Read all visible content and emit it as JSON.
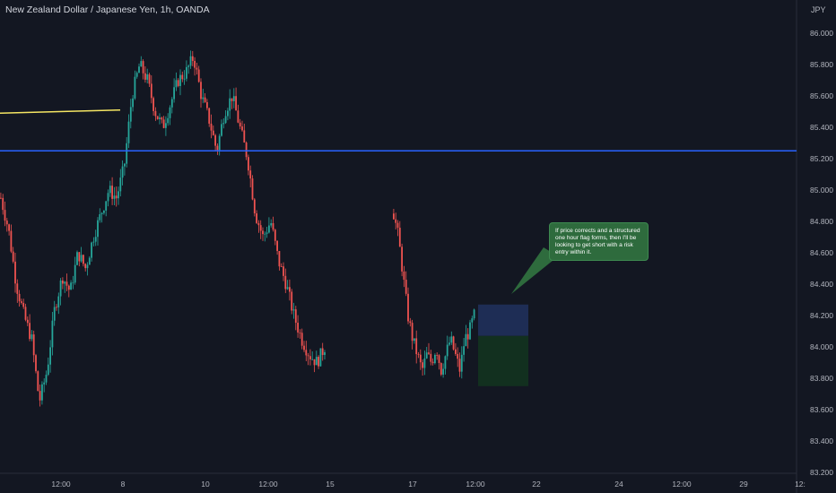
{
  "header": {
    "title": "New Zealand Dollar / Japanese Yen, 1h, OANDA",
    "currency": "JPY"
  },
  "annotation": {
    "text": "If price corrects and a structured one hour flag forms, then I'll be looking to get short with a risk entry within it."
  },
  "colors": {
    "background": "#131722",
    "up_candle": "#26a69a",
    "down_candle": "#ef5350",
    "horizontal_line": "#2962ff",
    "trend_line": "#f5e663",
    "risk_zone": "#1e2d55",
    "reward_zone": "#12301f",
    "annotation_bg": "#2e6b3d"
  },
  "chart_data": {
    "type": "candlestick",
    "title": "New Zealand Dollar / Japanese Yen, 1h, OANDA",
    "y_axis": {
      "unit": "JPY",
      "ylim": [
        83.2,
        86.1
      ],
      "ticks": [
        "86.000",
        "85.800",
        "85.600",
        "85.400",
        "85.200",
        "85.000",
        "84.800",
        "84.600",
        "84.400",
        "84.200",
        "84.000",
        "83.800",
        "83.600",
        "83.400",
        "83.200"
      ]
    },
    "x_axis": {
      "ticks": [
        "12:00",
        "8",
        "10",
        "12:00",
        "15",
        "17",
        "12:00",
        "22",
        "24",
        "12:00",
        "29",
        "12:"
      ]
    },
    "horizontal_line": {
      "price": 85.25
    },
    "trend_line": {
      "start_price": 85.49,
      "end_price": 85.51
    },
    "position_box": {
      "top": 84.27,
      "entry": 84.07,
      "bottom": 83.75
    },
    "segments": [
      {
        "path": [
          84.95,
          84.75,
          84.4,
          84.2,
          84.05,
          83.65,
          83.85,
          84.25,
          84.45,
          84.35,
          84.6,
          84.5,
          84.7,
          84.85,
          85.0,
          84.95,
          85.15,
          85.6,
          85.8,
          85.7,
          85.5,
          85.4,
          85.55,
          85.7,
          85.75,
          85.85,
          85.6,
          85.45,
          85.25,
          85.5,
          85.6,
          85.4,
          85.2,
          84.85,
          84.7,
          84.8,
          84.55,
          84.4,
          84.2,
          84.05,
          83.95,
          83.9,
          84.0
        ]
      },
      {
        "path": [
          84.85,
          84.7,
          84.45,
          84.2,
          84.05,
          83.95,
          83.85,
          83.95,
          83.9,
          84.0,
          83.85,
          83.95,
          84.05,
          83.95,
          83.85,
          84.05,
          84.1,
          84.2
        ]
      }
    ],
    "grid": false,
    "legend": "none"
  }
}
